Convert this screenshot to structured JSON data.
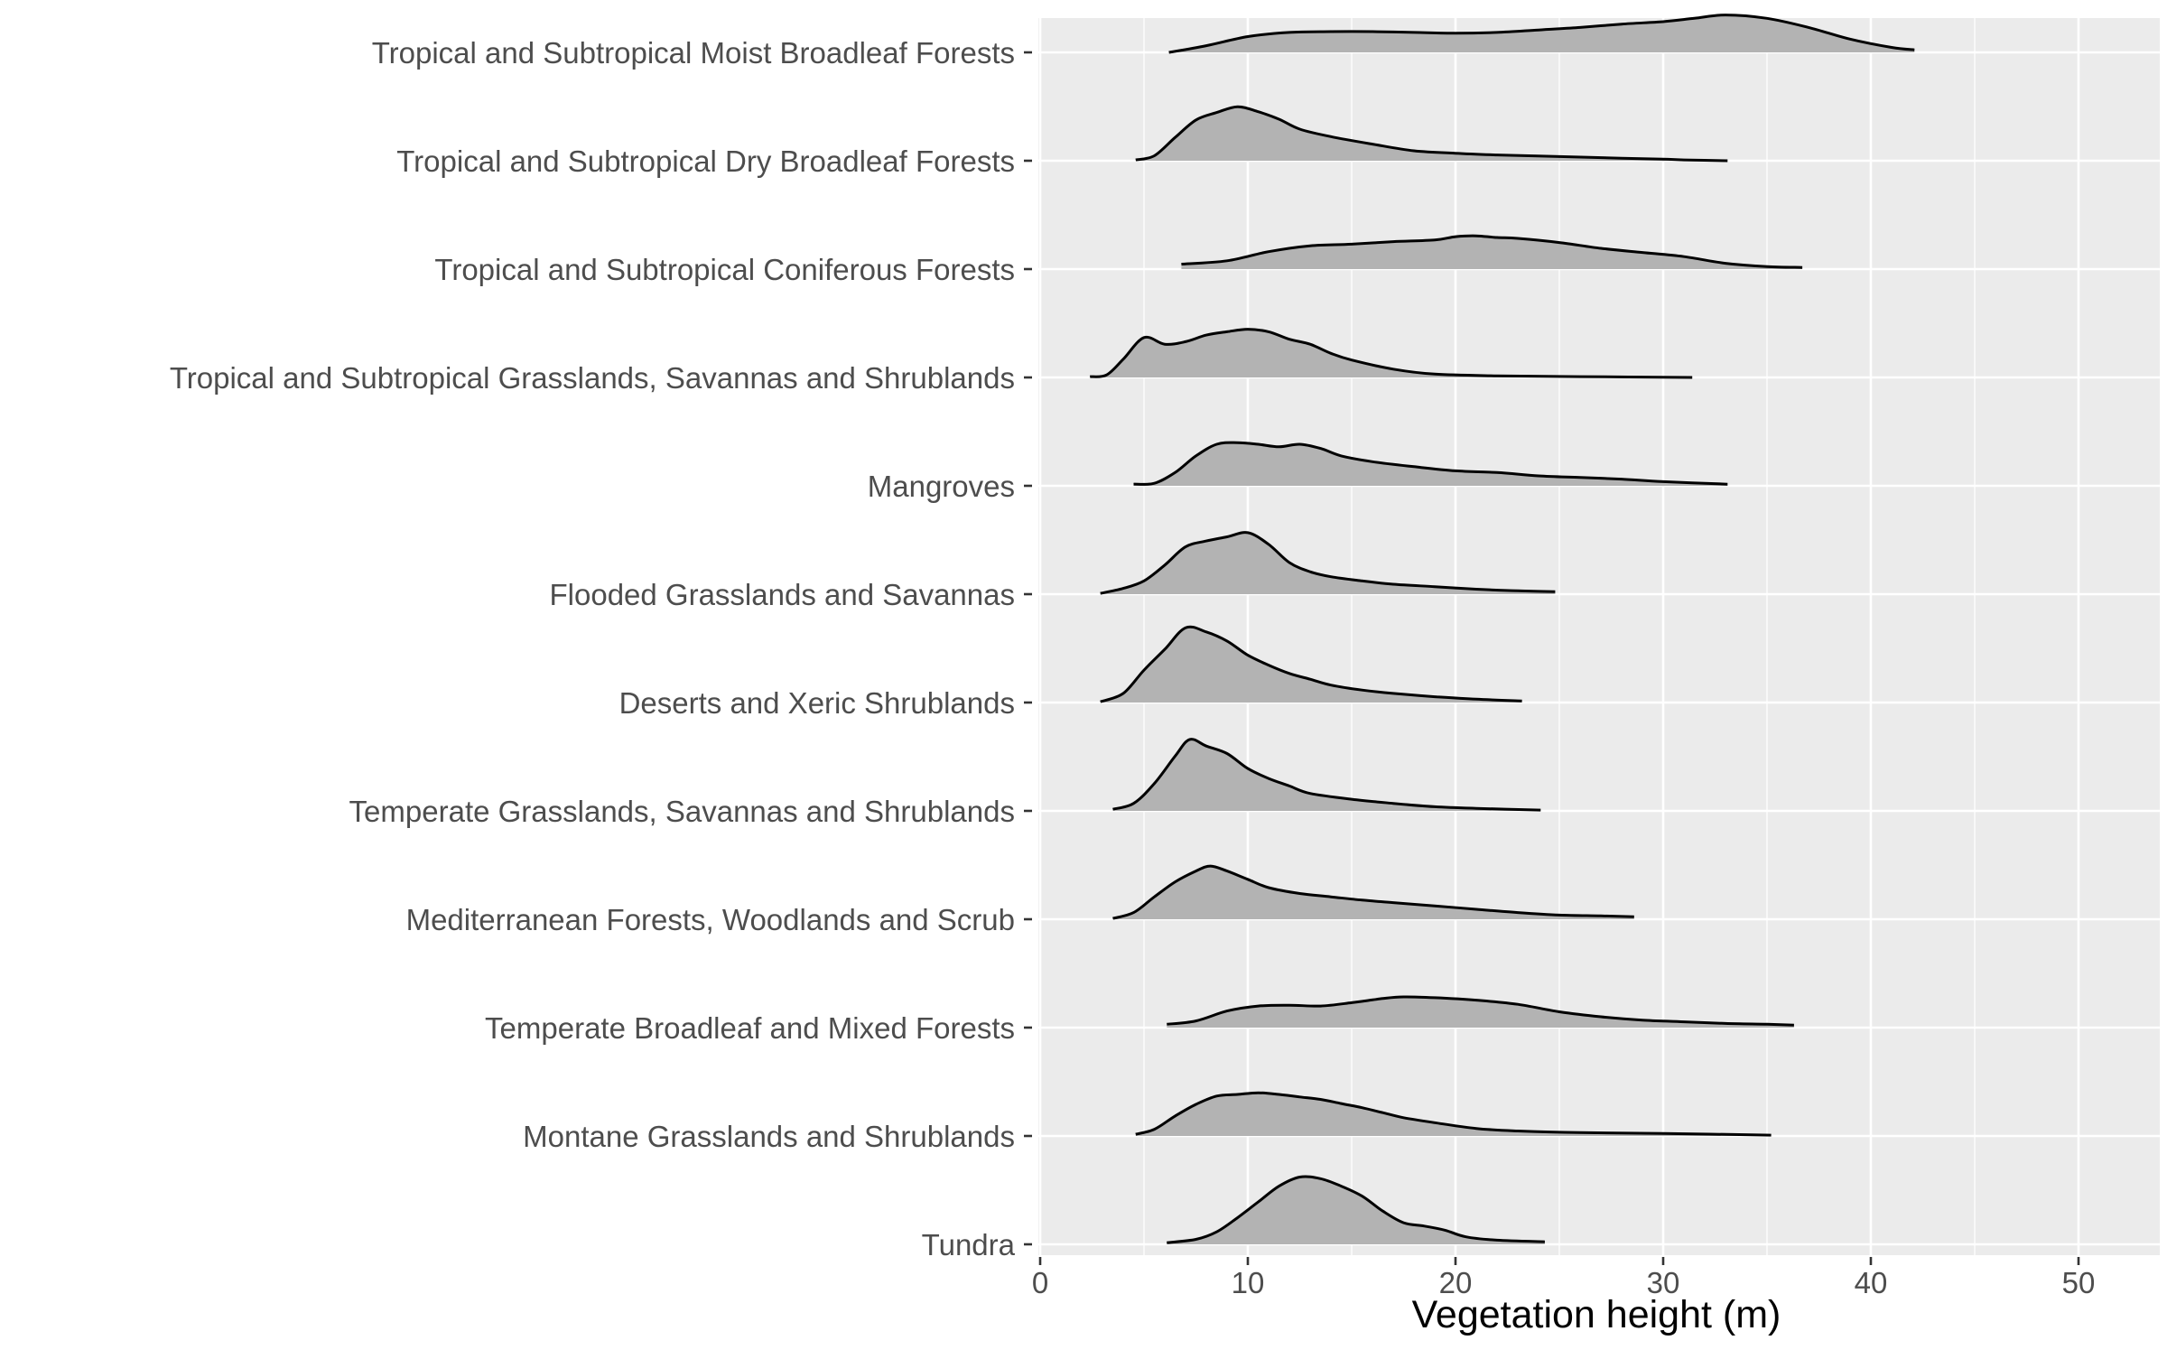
{
  "chart_data": {
    "type": "ridgeline",
    "xlabel": "Vegetation height (m)",
    "ylabel": "",
    "xlim": [
      0,
      54
    ],
    "x_ticks": [
      0,
      10,
      20,
      30,
      40,
      50
    ],
    "x_tick_labels": [
      "0",
      "10",
      "20",
      "30",
      "40",
      "50"
    ],
    "grid": true,
    "legend": "none",
    "colors": {
      "fill": "#b3b3b3",
      "line": "#000000",
      "panel": "#ebebeb",
      "grid": "#ffffff",
      "text": "#4d4d4d"
    },
    "categories": [
      "Tropical and Subtropical Moist Broadleaf Forests",
      "Tropical and Subtropical Dry Broadleaf Forests",
      "Tropical and Subtropical Coniferous Forests",
      "Tropical and Subtropical Grasslands, Savannas and Shrublands",
      "Mangroves",
      "Flooded Grasslands and Savannas",
      "Deserts and Xeric Shrublands",
      "Temperate Grasslands, Savannas and Shrublands",
      "Mediterranean Forests, Woodlands and Scrub",
      "Temperate Broadleaf and Mixed Forests",
      "Montane Grasslands and Shrublands",
      "Tundra"
    ],
    "series": [
      {
        "density": [
          [
            6.2,
            0
          ],
          [
            8,
            0.08
          ],
          [
            10,
            0.19
          ],
          [
            12,
            0.24
          ],
          [
            14,
            0.25
          ],
          [
            16,
            0.25
          ],
          [
            18,
            0.24
          ],
          [
            20,
            0.23
          ],
          [
            22,
            0.24
          ],
          [
            24,
            0.27
          ],
          [
            26,
            0.3
          ],
          [
            28,
            0.34
          ],
          [
            30,
            0.37
          ],
          [
            31.5,
            0.41
          ],
          [
            33,
            0.45
          ],
          [
            35,
            0.41
          ],
          [
            37,
            0.3
          ],
          [
            39,
            0.16
          ],
          [
            41,
            0.06
          ],
          [
            42.1,
            0.03
          ]
        ]
      },
      {
        "density": [
          [
            4.6,
            0.01
          ],
          [
            5.5,
            0.06
          ],
          [
            6.5,
            0.28
          ],
          [
            7.5,
            0.49
          ],
          [
            8.5,
            0.58
          ],
          [
            9.5,
            0.65
          ],
          [
            10.5,
            0.59
          ],
          [
            11.5,
            0.5
          ],
          [
            12.5,
            0.38
          ],
          [
            14,
            0.29
          ],
          [
            16,
            0.2
          ],
          [
            18,
            0.12
          ],
          [
            20,
            0.09
          ],
          [
            22,
            0.07
          ],
          [
            25,
            0.05
          ],
          [
            28,
            0.03
          ],
          [
            30,
            0.02
          ],
          [
            31,
            0.01
          ],
          [
            33.1,
            0.0
          ]
        ]
      },
      {
        "density": [
          [
            6.8,
            0.06
          ],
          [
            9,
            0.1
          ],
          [
            11,
            0.21
          ],
          [
            13,
            0.28
          ],
          [
            15,
            0.3
          ],
          [
            17,
            0.33
          ],
          [
            19,
            0.35
          ],
          [
            20,
            0.39
          ],
          [
            21,
            0.4
          ],
          [
            22,
            0.38
          ],
          [
            23,
            0.37
          ],
          [
            25,
            0.32
          ],
          [
            27,
            0.25
          ],
          [
            29,
            0.2
          ],
          [
            31,
            0.15
          ],
          [
            33,
            0.07
          ],
          [
            35,
            0.03
          ],
          [
            36.7,
            0.02
          ]
        ]
      },
      {
        "density": [
          [
            2.4,
            0.01
          ],
          [
            3.2,
            0.03
          ],
          [
            4,
            0.22
          ],
          [
            5,
            0.48
          ],
          [
            6,
            0.4
          ],
          [
            7,
            0.43
          ],
          [
            8,
            0.51
          ],
          [
            9,
            0.55
          ],
          [
            10,
            0.58
          ],
          [
            11,
            0.55
          ],
          [
            12,
            0.46
          ],
          [
            13,
            0.4
          ],
          [
            14,
            0.29
          ],
          [
            15,
            0.21
          ],
          [
            17,
            0.1
          ],
          [
            19,
            0.04
          ],
          [
            22,
            0.02
          ],
          [
            26,
            0.01
          ],
          [
            31.4,
            0.0
          ]
        ]
      },
      {
        "density": [
          [
            4.5,
            0.02
          ],
          [
            5.5,
            0.03
          ],
          [
            6.5,
            0.16
          ],
          [
            7.5,
            0.36
          ],
          [
            8.5,
            0.5
          ],
          [
            9.5,
            0.52
          ],
          [
            10.5,
            0.5
          ],
          [
            11.5,
            0.47
          ],
          [
            12.5,
            0.5
          ],
          [
            13.5,
            0.45
          ],
          [
            14.5,
            0.36
          ],
          [
            16,
            0.29
          ],
          [
            18,
            0.23
          ],
          [
            20,
            0.18
          ],
          [
            22,
            0.16
          ],
          [
            24,
            0.12
          ],
          [
            26,
            0.1
          ],
          [
            28,
            0.08
          ],
          [
            30,
            0.05
          ],
          [
            33.1,
            0.02
          ]
        ]
      },
      {
        "density": [
          [
            2.9,
            0.01
          ],
          [
            4,
            0.07
          ],
          [
            5,
            0.16
          ],
          [
            6,
            0.35
          ],
          [
            7,
            0.57
          ],
          [
            8,
            0.64
          ],
          [
            9,
            0.69
          ],
          [
            10,
            0.74
          ],
          [
            11,
            0.6
          ],
          [
            12,
            0.38
          ],
          [
            13,
            0.27
          ],
          [
            14,
            0.21
          ],
          [
            15.5,
            0.16
          ],
          [
            17,
            0.12
          ],
          [
            19,
            0.09
          ],
          [
            21,
            0.06
          ],
          [
            23,
            0.04
          ],
          [
            24.8,
            0.03
          ]
        ]
      },
      {
        "density": [
          [
            2.9,
            0.01
          ],
          [
            4,
            0.11
          ],
          [
            5,
            0.39
          ],
          [
            6,
            0.64
          ],
          [
            7,
            0.9
          ],
          [
            8,
            0.85
          ],
          [
            9,
            0.74
          ],
          [
            10,
            0.57
          ],
          [
            11,
            0.45
          ],
          [
            12,
            0.35
          ],
          [
            13,
            0.28
          ],
          [
            14,
            0.21
          ],
          [
            15.5,
            0.15
          ],
          [
            17,
            0.11
          ],
          [
            19,
            0.07
          ],
          [
            21,
            0.04
          ],
          [
            23.2,
            0.02
          ]
        ]
      },
      {
        "density": [
          [
            3.5,
            0.02
          ],
          [
            4.5,
            0.09
          ],
          [
            5.5,
            0.33
          ],
          [
            6.5,
            0.66
          ],
          [
            7.2,
            0.86
          ],
          [
            8,
            0.78
          ],
          [
            9,
            0.69
          ],
          [
            10,
            0.51
          ],
          [
            11,
            0.39
          ],
          [
            12,
            0.3
          ],
          [
            13,
            0.21
          ],
          [
            15,
            0.14
          ],
          [
            17,
            0.09
          ],
          [
            19,
            0.05
          ],
          [
            21,
            0.03
          ],
          [
            24.1,
            0.01
          ]
        ]
      },
      {
        "density": [
          [
            3.5,
            0.01
          ],
          [
            4.5,
            0.08
          ],
          [
            5.5,
            0.27
          ],
          [
            6.5,
            0.45
          ],
          [
            7.5,
            0.58
          ],
          [
            8.2,
            0.64
          ],
          [
            9,
            0.58
          ],
          [
            10,
            0.48
          ],
          [
            11,
            0.38
          ],
          [
            12.5,
            0.31
          ],
          [
            14,
            0.27
          ],
          [
            15.5,
            0.23
          ],
          [
            17,
            0.2
          ],
          [
            19,
            0.16
          ],
          [
            21,
            0.12
          ],
          [
            23,
            0.08
          ],
          [
            25,
            0.05
          ],
          [
            27,
            0.04
          ],
          [
            28.6,
            0.03
          ]
        ]
      },
      {
        "density": [
          [
            6.1,
            0.04
          ],
          [
            7.5,
            0.08
          ],
          [
            9,
            0.2
          ],
          [
            10.5,
            0.26
          ],
          [
            12,
            0.27
          ],
          [
            13.5,
            0.26
          ],
          [
            15,
            0.3
          ],
          [
            16.5,
            0.35
          ],
          [
            17.5,
            0.37
          ],
          [
            19,
            0.36
          ],
          [
            21,
            0.33
          ],
          [
            23,
            0.28
          ],
          [
            25,
            0.19
          ],
          [
            27,
            0.13
          ],
          [
            29,
            0.09
          ],
          [
            31,
            0.07
          ],
          [
            33,
            0.05
          ],
          [
            35,
            0.04
          ],
          [
            36.3,
            0.03
          ]
        ]
      },
      {
        "density": [
          [
            4.6,
            0.02
          ],
          [
            5.5,
            0.08
          ],
          [
            6.5,
            0.24
          ],
          [
            7.5,
            0.38
          ],
          [
            8.5,
            0.48
          ],
          [
            9.5,
            0.5
          ],
          [
            10.5,
            0.52
          ],
          [
            11.5,
            0.5
          ],
          [
            12.5,
            0.47
          ],
          [
            13.5,
            0.44
          ],
          [
            14.5,
            0.39
          ],
          [
            15.5,
            0.34
          ],
          [
            16.5,
            0.28
          ],
          [
            17.5,
            0.22
          ],
          [
            19,
            0.16
          ],
          [
            21,
            0.09
          ],
          [
            23,
            0.06
          ],
          [
            26,
            0.04
          ],
          [
            30,
            0.03
          ],
          [
            35.2,
            0.01
          ]
        ]
      },
      {
        "density": [
          [
            6.1,
            0.02
          ],
          [
            7.5,
            0.06
          ],
          [
            8.5,
            0.15
          ],
          [
            9.5,
            0.32
          ],
          [
            10.5,
            0.51
          ],
          [
            11.5,
            0.7
          ],
          [
            12.5,
            0.81
          ],
          [
            13.5,
            0.79
          ],
          [
            14.5,
            0.7
          ],
          [
            15.5,
            0.58
          ],
          [
            16.5,
            0.4
          ],
          [
            17.5,
            0.26
          ],
          [
            18.5,
            0.22
          ],
          [
            19.5,
            0.17
          ],
          [
            20.5,
            0.09
          ],
          [
            22,
            0.05
          ],
          [
            24.3,
            0.03
          ]
        ]
      }
    ]
  }
}
